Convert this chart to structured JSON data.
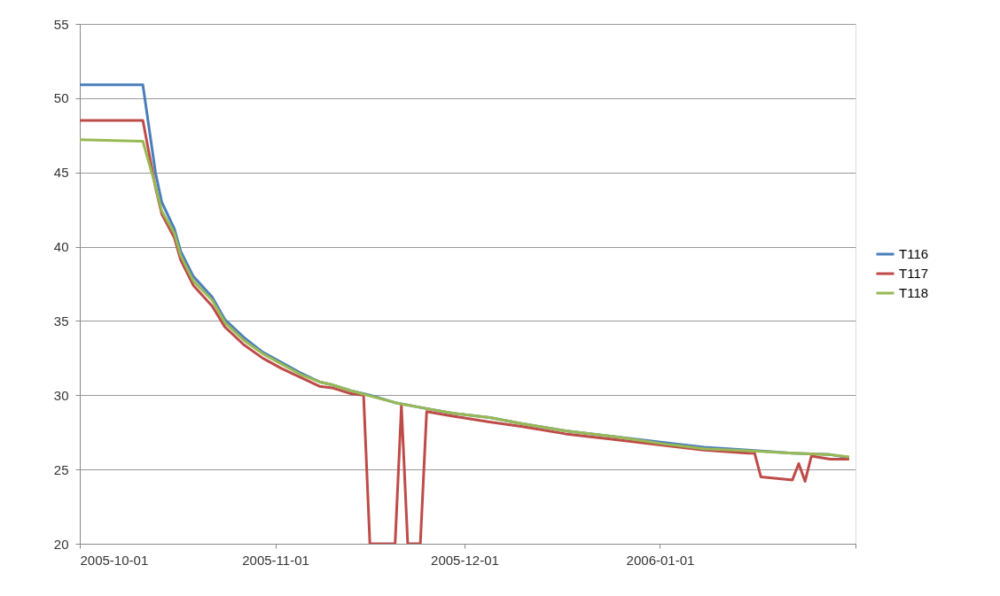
{
  "chart_data": {
    "type": "line",
    "xlim": [
      "2005-10-01",
      "2006-02-01"
    ],
    "xticks": [
      "2005-10-01",
      "2005-11-01",
      "2005-12-01",
      "2006-01-01",
      {
        "value": "2006-02-01",
        "label": null
      }
    ],
    "ylim": [
      20,
      55
    ],
    "yticks": [
      20,
      25,
      30,
      35,
      40,
      45,
      50,
      55
    ],
    "grid": "y",
    "legend": "right",
    "marker": "none",
    "line_style": "solid",
    "series": [
      {
        "name": "T116",
        "color": "#4a7ebb",
        "x": [
          "2005-10-01",
          "2005-10-11",
          "2005-10-13",
          "2005-10-14",
          "2005-10-16",
          "2005-10-17",
          "2005-10-19",
          "2005-10-22",
          "2005-10-24",
          "2005-10-27",
          "2005-10-30",
          "2005-11-02",
          "2005-11-05",
          "2005-11-08",
          "2005-11-10",
          "2005-11-13",
          "2005-11-16",
          "2005-11-20",
          "2005-11-25",
          "2005-11-29",
          "2005-12-05",
          "2005-12-10",
          "2005-12-17",
          "2005-12-25",
          "2006-01-02",
          "2006-01-08",
          "2006-01-15",
          "2006-01-22",
          "2006-01-28",
          "2006-01-31"
        ],
        "values": [
          50.9,
          50.9,
          45.0,
          43.0,
          41.2,
          39.7,
          38.0,
          36.6,
          35.1,
          33.9,
          32.9,
          32.2,
          31.5,
          30.9,
          30.7,
          30.3,
          30.0,
          29.5,
          29.1,
          28.8,
          28.5,
          28.1,
          27.6,
          27.2,
          26.8,
          26.5,
          26.3,
          26.1,
          26.0,
          25.8
        ]
      },
      {
        "name": "T117",
        "color": "#be4b48",
        "x": [
          "2005-10-01",
          "2005-10-11",
          "2005-10-13",
          "2005-10-14",
          "2005-10-16",
          "2005-10-17",
          "2005-10-19",
          "2005-10-22",
          "2005-10-24",
          "2005-10-27",
          "2005-10-30",
          "2005-11-02",
          "2005-11-05",
          "2005-11-08",
          "2005-11-10",
          "2005-11-13",
          "2005-11-15",
          "2005-11-16",
          "2005-11-20",
          "2005-11-21",
          "2005-11-22",
          "2005-11-24",
          "2005-11-25",
          "2005-11-29",
          "2005-12-05",
          "2005-12-10",
          "2005-12-17",
          "2005-12-25",
          "2006-01-02",
          "2006-01-08",
          "2006-01-15",
          "2006-01-16",
          "2006-01-17",
          "2006-01-22",
          "2006-01-23",
          "2006-01-24",
          "2006-01-25",
          "2006-01-28",
          "2006-01-31"
        ],
        "values": [
          48.5,
          48.5,
          44.0,
          42.2,
          40.6,
          39.1,
          37.4,
          36.0,
          34.6,
          33.4,
          32.5,
          31.8,
          31.2,
          30.6,
          30.5,
          30.1,
          30.0,
          20,
          20,
          29.3,
          20,
          20,
          28.9,
          28.6,
          28.2,
          27.9,
          27.4,
          27.0,
          26.6,
          26.3,
          26.1,
          26.1,
          24.5,
          24.3,
          25.4,
          24.2,
          25.9,
          25.7,
          25.7
        ]
      },
      {
        "name": "T118",
        "color": "#98b954",
        "x": [
          "2005-10-01",
          "2005-10-11",
          "2005-10-13",
          "2005-10-14",
          "2005-10-16",
          "2005-10-17",
          "2005-10-19",
          "2005-10-22",
          "2005-10-24",
          "2005-10-27",
          "2005-10-30",
          "2005-11-02",
          "2005-11-05",
          "2005-11-08",
          "2005-11-10",
          "2005-11-13",
          "2005-11-16",
          "2005-11-20",
          "2005-11-25",
          "2005-11-29",
          "2005-12-05",
          "2005-12-10",
          "2005-12-17",
          "2005-12-25",
          "2006-01-02",
          "2006-01-08",
          "2006-01-15",
          "2006-01-22",
          "2006-01-28",
          "2006-01-31"
        ],
        "values": [
          47.2,
          47.1,
          44.1,
          42.4,
          40.9,
          39.4,
          37.7,
          36.4,
          34.9,
          33.7,
          32.8,
          32.1,
          31.4,
          30.9,
          30.7,
          30.3,
          29.96,
          29.5,
          29.1,
          28.8,
          28.5,
          28.1,
          27.6,
          27.2,
          26.7,
          26.4,
          26.26,
          26.1,
          26.0,
          25.85
        ]
      }
    ]
  }
}
